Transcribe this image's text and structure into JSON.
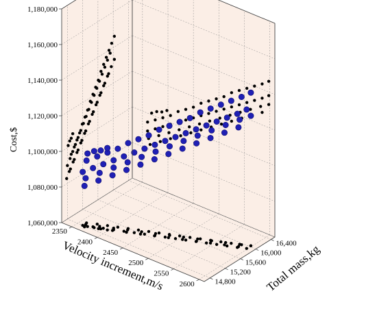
{
  "chart_data": {
    "type": "scatter",
    "title": "",
    "xlabel": "Velocity increment,m/s",
    "ylabel": "Total mass,kg",
    "zlabel": "Cost,$",
    "xlim": [
      2330,
      2610
    ],
    "ylim": [
      14650,
      16500
    ],
    "zlim": [
      1060000,
      1180000
    ],
    "x_ticks": [
      "2350",
      "2400",
      "2450",
      "2500",
      "2550",
      "2600"
    ],
    "y_ticks": [
      "14,800",
      "15,200",
      "15,600",
      "16,000",
      "16,400"
    ],
    "z_ticks": [
      "1,060,000",
      "1,080,000",
      "1,100,000",
      "1,120,000",
      "1,140,000",
      "1,160,000",
      "1,180,000"
    ],
    "grid": true,
    "colors": {
      "points": "#1f1fb4",
      "projections": "#000000",
      "panel": "#fbeee6"
    },
    "series": [
      {
        "points": [
          [
            2360,
            14900,
            1095000
          ],
          [
            2375,
            14980,
            1098000
          ],
          [
            2390,
            15050,
            1101000
          ],
          [
            2405,
            15120,
            1104000
          ],
          [
            2420,
            15190,
            1108000
          ],
          [
            2435,
            15260,
            1111000
          ],
          [
            2450,
            15330,
            1114000
          ],
          [
            2465,
            15400,
            1118000
          ],
          [
            2480,
            15470,
            1121000
          ],
          [
            2495,
            15540,
            1124000
          ],
          [
            2510,
            15610,
            1127000
          ],
          [
            2525,
            15680,
            1131000
          ],
          [
            2540,
            15750,
            1134000
          ],
          [
            2555,
            15820,
            1137000
          ],
          [
            2570,
            15890,
            1140000
          ],
          [
            2585,
            15960,
            1143000
          ],
          [
            2598,
            16030,
            1146000
          ],
          [
            2360,
            14800,
            1090000
          ],
          [
            2375,
            14870,
            1093000
          ],
          [
            2390,
            14940,
            1096000
          ],
          [
            2405,
            15010,
            1099000
          ],
          [
            2420,
            15080,
            1102000
          ],
          [
            2435,
            15150,
            1105000
          ],
          [
            2450,
            15220,
            1108000
          ],
          [
            2465,
            15290,
            1111000
          ],
          [
            2480,
            15360,
            1114000
          ],
          [
            2495,
            15430,
            1117000
          ],
          [
            2510,
            15500,
            1120000
          ],
          [
            2525,
            15570,
            1123000
          ],
          [
            2540,
            15640,
            1126000
          ],
          [
            2555,
            15710,
            1129000
          ],
          [
            2570,
            15780,
            1132000
          ],
          [
            2585,
            15850,
            1135000
          ],
          [
            2598,
            15920,
            1138000
          ],
          [
            2362,
            14850,
            1086000
          ],
          [
            2382,
            14950,
            1090000
          ],
          [
            2402,
            15050,
            1094000
          ],
          [
            2422,
            15150,
            1098000
          ],
          [
            2442,
            15250,
            1102000
          ],
          [
            2462,
            15350,
            1106000
          ],
          [
            2482,
            15450,
            1110000
          ],
          [
            2502,
            15550,
            1114000
          ],
          [
            2522,
            15650,
            1118000
          ],
          [
            2542,
            15750,
            1122000
          ],
          [
            2562,
            15850,
            1126000
          ],
          [
            2582,
            15950,
            1130000
          ],
          [
            2598,
            16030,
            1133000
          ],
          [
            2365,
            14780,
            1083000
          ],
          [
            2385,
            14880,
            1087000
          ],
          [
            2405,
            14980,
            1091000
          ],
          [
            2425,
            15080,
            1095000
          ],
          [
            2445,
            15180,
            1099000
          ],
          [
            2465,
            15280,
            1103000
          ],
          [
            2485,
            15380,
            1107000
          ],
          [
            2505,
            15480,
            1111000
          ],
          [
            2525,
            15580,
            1115000
          ],
          [
            2545,
            15680,
            1119000
          ],
          [
            2565,
            15780,
            1123000
          ],
          [
            2585,
            15880,
            1127000
          ],
          [
            2368,
            14820,
            1101000
          ],
          [
            2378,
            14860,
            1103000
          ],
          [
            2388,
            14900,
            1104000
          ],
          [
            2398,
            14940,
            1106000
          ]
        ]
      }
    ]
  }
}
